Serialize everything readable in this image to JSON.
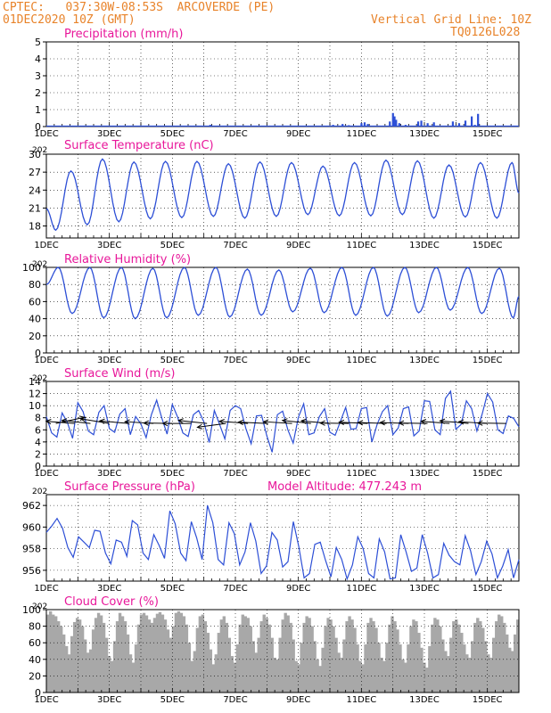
{
  "header": {
    "line1": "CPTEC:   037:30W-08:53S  ARCOVERDE (PE)",
    "line2": "01DEC2020 10Z (GMT)",
    "right1": "Vertical Grid Line: 10Z",
    "right2": "TQ0126L028"
  },
  "colors": {
    "header": "#e8832a",
    "title": "#e8179a",
    "line": "#2d4fd6",
    "cloud": "#a8a8a8",
    "grid": "#000000"
  },
  "panel_labels": {
    "pressure_extra": "Model Altitude: 477.243 m",
    "time_cut_label": "202"
  },
  "chart_data": [
    {
      "type": "bar",
      "title": "Precipitation (mm/h)",
      "ylim": [
        0,
        5
      ],
      "yticks": [
        "0",
        "1",
        "2",
        "3",
        "4",
        "5"
      ],
      "xticks": [
        "1DEC",
        "3DEC",
        "5DEC",
        "7DEC",
        "9DEC",
        "11DEC",
        "13DEC",
        "15DEC"
      ],
      "xlim_days": [
        0,
        15
      ],
      "grid": true,
      "x": [
        5.2,
        8.1,
        9.1,
        9.4,
        9.6,
        10.0,
        10.1,
        10.2,
        10.9,
        11.0,
        11.05,
        11.1,
        11.2,
        11.4,
        11.8,
        11.9,
        12.1,
        12.3,
        12.9,
        13.1,
        13.3,
        13.5,
        13.6,
        13.7
      ],
      "values": [
        0.1,
        0.05,
        0.1,
        0.15,
        0.08,
        0.2,
        0.25,
        0.15,
        0.3,
        0.8,
        0.6,
        0.4,
        0.2,
        0.1,
        0.3,
        0.35,
        0.2,
        0.25,
        0.3,
        0.2,
        0.35,
        0.6,
        0.1,
        0.75
      ]
    },
    {
      "type": "line",
      "title": "Surface Temperature (nC)",
      "ylim": [
        16,
        30
      ],
      "yticks": [
        "18",
        "21",
        "24",
        "27",
        "30"
      ],
      "xticks": [
        "1DEC",
        "3DEC",
        "5DEC",
        "7DEC",
        "9DEC",
        "11DEC",
        "13DEC",
        "15DEC"
      ],
      "grid": true,
      "daily_max": [
        27.2,
        29.2,
        28.7,
        28.8,
        28.8,
        28.4,
        28.7,
        28.6,
        28.0,
        28.6,
        29.0,
        28.9,
        28.2,
        28.6,
        28.6
      ],
      "daily_min": [
        17.3,
        18.2,
        18.7,
        19.2,
        19.4,
        19.6,
        19.3,
        19.6,
        19.9,
        19.7,
        19.7,
        19.9,
        19.3,
        19.5,
        19.3
      ],
      "start_value": 20.9,
      "end_value": 23.5
    },
    {
      "type": "line",
      "title": "Relative Humidity (%)",
      "ylim": [
        0,
        100
      ],
      "yticks": [
        "0",
        "20",
        "40",
        "60",
        "80",
        "100"
      ],
      "xticks": [
        "1DEC",
        "3DEC",
        "5DEC",
        "7DEC",
        "9DEC",
        "11DEC",
        "13DEC",
        "15DEC"
      ],
      "grid": true,
      "daily_max": [
        100,
        100,
        100,
        99,
        100,
        100,
        98,
        97,
        99,
        100,
        100,
        100,
        100,
        100,
        99
      ],
      "daily_min": [
        46,
        41,
        40,
        41,
        44,
        42,
        44,
        48,
        47,
        44,
        43,
        47,
        50,
        46,
        41
      ],
      "start_value": 80,
      "end_value": 66
    },
    {
      "type": "line",
      "title": "Surface Wind (m/s)",
      "ylim": [
        0,
        14
      ],
      "yticks": [
        "0",
        "2",
        "4",
        "6",
        "8",
        "10",
        "12",
        "14"
      ],
      "xticks": [
        "1DEC",
        "3DEC",
        "5DEC",
        "7DEC",
        "9DEC",
        "11DEC",
        "13DEC",
        "15DEC"
      ],
      "grid": true,
      "series": [
        {
          "values": [
            8.2,
            5.5,
            4.8,
            8.8,
            7.2,
            4.6,
            10.5,
            9.0,
            5.8,
            5.2,
            8.9,
            10.0,
            6.2,
            5.6,
            8.6,
            9.5,
            5.2,
            8.2,
            7.0,
            4.7,
            8.5,
            10.9,
            7.9,
            5.3,
            10.2,
            8.1,
            5.5,
            4.9,
            8.5,
            9.2,
            7.3,
            3.9,
            9.2,
            6.9,
            4.5,
            9.2,
            10.0,
            9.5,
            6.2,
            3.7,
            8.3,
            8.4,
            5.0,
            2.3,
            8.5,
            9.1,
            6.0,
            3.8,
            8.1,
            10.3,
            5.2,
            5.5,
            8.2,
            9.5,
            5.6,
            5.1,
            7.4,
            9.7,
            6.1,
            6.2,
            9.5,
            9.7,
            4.0,
            6.9,
            9.0,
            10.0,
            5.2,
            6.3,
            9.5,
            9.8,
            5.0,
            5.8,
            10.8,
            10.7,
            6.0,
            5.2,
            11.2,
            12.4,
            6.1,
            6.9,
            10.8,
            9.5,
            5.8,
            8.6,
            12.0,
            10.6,
            6.0,
            5.4,
            8.3,
            7.9,
            6.5
          ]
        }
      ],
      "wind_arrows": [
        {
          "day": 0.3,
          "u": 1.0,
          "v": 0.3
        },
        {
          "day": 0.9,
          "u": -1.0,
          "v": 0.25
        },
        {
          "day": 1.4,
          "u": -1.0,
          "v": 0.35
        },
        {
          "day": 2.0,
          "u": -1.0,
          "v": 0.55
        },
        {
          "day": 2.6,
          "u": -1.0,
          "v": 0.3
        },
        {
          "day": 3.4,
          "u": -1.0,
          "v": 0.2
        },
        {
          "day": 4.0,
          "u": -1.0,
          "v": 0.05
        },
        {
          "day": 4.6,
          "u": -1.0,
          "v": 0.0
        },
        {
          "day": 5.1,
          "u": -1.0,
          "v": 0.35
        },
        {
          "day": 5.7,
          "u": -1.0,
          "v": -0.45
        },
        {
          "day": 6.4,
          "u": -1.0,
          "v": 0.25
        },
        {
          "day": 7.0,
          "u": -1.0,
          "v": 0.15
        },
        {
          "day": 7.8,
          "u": -1.0,
          "v": 0.2
        },
        {
          "day": 8.4,
          "u": -1.0,
          "v": 0.35
        },
        {
          "day": 9.0,
          "u": -1.0,
          "v": 0.3
        },
        {
          "day": 9.6,
          "u": -1.0,
          "v": 0.05
        },
        {
          "day": 10.2,
          "u": -1.0,
          "v": 0.15
        },
        {
          "day": 10.8,
          "u": -1.0,
          "v": 0.1
        },
        {
          "day": 11.5,
          "u": -1.0,
          "v": 0.1
        },
        {
          "day": 12.1,
          "u": -1.0,
          "v": 0.05
        },
        {
          "day": 12.8,
          "u": -1.0,
          "v": 0.25
        },
        {
          "day": 13.4,
          "u": -1.0,
          "v": 0.3
        },
        {
          "day": 14.0,
          "u": -1.0,
          "v": 0.2
        },
        {
          "day": 14.6,
          "u": -1.0,
          "v": 0.05
        }
      ]
    },
    {
      "type": "line",
      "title": "Surface Pressure (hPa)",
      "ylim": [
        955,
        963
      ],
      "yticks": [
        "956",
        "958",
        "960",
        "962"
      ],
      "xticks": [
        "1DEC",
        "3DEC",
        "5DEC",
        "7DEC",
        "9DEC",
        "11DEC",
        "13DEC",
        "15DEC"
      ],
      "grid": true,
      "series": [
        {
          "values": [
            959.5,
            960.1,
            960.8,
            959.9,
            958.1,
            957.2,
            959.1,
            958.6,
            958.1,
            959.7,
            959.6,
            957.6,
            956.6,
            958.8,
            958.6,
            957.3,
            960.6,
            960.2,
            957.6,
            957.0,
            959.3,
            958.3,
            957.1,
            961.5,
            960.3,
            957.6,
            956.9,
            960.5,
            959.0,
            957.0,
            962.0,
            960.4,
            957.0,
            956.5,
            960.4,
            959.4,
            956.5,
            957.7,
            960.4,
            958.7,
            955.7,
            956.4,
            959.5,
            958.8,
            956.3,
            956.8,
            960.5,
            958.2,
            955.3,
            955.7,
            958.4,
            958.6,
            956.9,
            955.4,
            958.1,
            957.0,
            955.2,
            956.5,
            959.1,
            958.0,
            955.7,
            955.3,
            958.9,
            957.7,
            955.2,
            955.3,
            959.3,
            957.7,
            955.9,
            956.2,
            959.3,
            957.6,
            955.3,
            955.6,
            958.5,
            957.4,
            956.8,
            956.5,
            959.2,
            957.8,
            955.6,
            956.8,
            958.7,
            957.5,
            955.3,
            956.4,
            957.9,
            955.3,
            957.0
          ]
        }
      ]
    },
    {
      "type": "bar",
      "title": "Cloud Cover (%)",
      "ylim": [
        0,
        100
      ],
      "yticks": [
        "0",
        "20",
        "40",
        "60",
        "80",
        "100"
      ],
      "xticks": [
        "1DEC",
        "3DEC",
        "5DEC",
        "7DEC",
        "9DEC",
        "11DEC",
        "13DEC",
        "15DEC"
      ],
      "grid": true,
      "values": [
        94,
        98,
        94,
        92,
        86,
        80,
        70,
        56,
        46,
        68,
        85,
        90,
        88,
        80,
        64,
        48,
        52,
        76,
        90,
        96,
        93,
        84,
        66,
        44,
        38,
        62,
        86,
        96,
        92,
        86,
        70,
        46,
        36,
        58,
        82,
        94,
        96,
        93,
        88,
        84,
        90,
        95,
        97,
        94,
        88,
        76,
        66,
        80,
        96,
        98,
        96,
        92,
        82,
        60,
        38,
        50,
        78,
        92,
        94,
        86,
        72,
        52,
        34,
        46,
        72,
        88,
        92,
        84,
        66,
        44,
        36,
        58,
        82,
        94,
        92,
        90,
        80,
        62,
        48,
        66,
        86,
        94,
        90,
        82,
        66,
        42,
        40,
        66,
        88,
        96,
        93,
        84,
        64,
        38,
        34,
        60,
        84,
        92,
        90,
        80,
        62,
        40,
        32,
        54,
        80,
        90,
        88,
        80,
        66,
        48,
        42,
        64,
        86,
        92,
        88,
        78,
        58,
        38,
        34,
        58,
        84,
        90,
        86,
        78,
        60,
        42,
        38,
        60,
        82,
        92,
        86,
        76,
        58,
        40,
        36,
        58,
        80,
        88,
        86,
        72,
        54,
        36,
        30,
        56,
        82,
        90,
        88,
        80,
        64,
        50,
        44,
        66,
        86,
        88,
        82,
        72,
        58,
        46,
        42,
        62,
        84,
        90,
        86,
        78,
        62,
        46,
        42,
        66,
        86,
        94,
        92,
        84,
        70,
        54,
        50,
        70,
        88
      ]
    }
  ]
}
